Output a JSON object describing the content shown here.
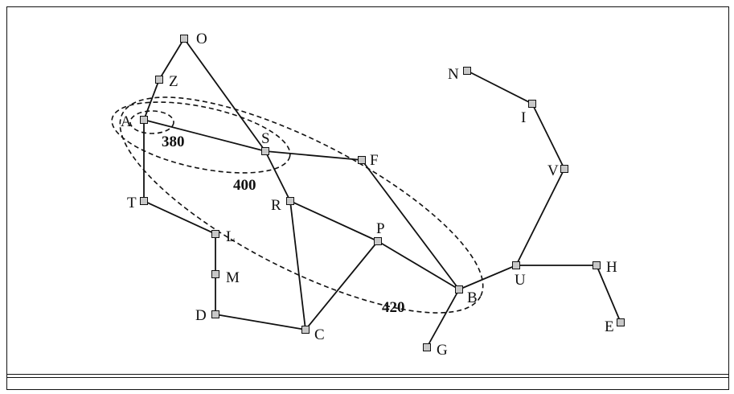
{
  "diagram": {
    "nodes": [
      {
        "id": "O",
        "label": "O"
      },
      {
        "id": "Z",
        "label": "Z"
      },
      {
        "id": "A",
        "label": "A"
      },
      {
        "id": "S",
        "label": "S"
      },
      {
        "id": "F",
        "label": "F"
      },
      {
        "id": "T",
        "label": "T"
      },
      {
        "id": "R",
        "label": "R"
      },
      {
        "id": "L",
        "label": "L"
      },
      {
        "id": "P",
        "label": "P"
      },
      {
        "id": "M",
        "label": "M"
      },
      {
        "id": "D",
        "label": "D"
      },
      {
        "id": "C",
        "label": "C"
      },
      {
        "id": "B",
        "label": "B"
      },
      {
        "id": "G",
        "label": "G"
      },
      {
        "id": "U",
        "label": "U"
      },
      {
        "id": "H",
        "label": "H"
      },
      {
        "id": "E",
        "label": "E"
      },
      {
        "id": "V",
        "label": "V"
      },
      {
        "id": "I",
        "label": "I"
      },
      {
        "id": "N",
        "label": "N"
      }
    ],
    "edges": [
      [
        "O",
        "Z"
      ],
      [
        "Z",
        "A"
      ],
      [
        "O",
        "S"
      ],
      [
        "A",
        "S"
      ],
      [
        "A",
        "T"
      ],
      [
        "S",
        "F"
      ],
      [
        "S",
        "R"
      ],
      [
        "T",
        "L"
      ],
      [
        "L",
        "M"
      ],
      [
        "M",
        "D"
      ],
      [
        "D",
        "C"
      ],
      [
        "R",
        "C"
      ],
      [
        "R",
        "P"
      ],
      [
        "P",
        "C"
      ],
      [
        "P",
        "B"
      ],
      [
        "F",
        "B"
      ],
      [
        "B",
        "G"
      ],
      [
        "B",
        "U"
      ],
      [
        "U",
        "H"
      ],
      [
        "H",
        "E"
      ],
      [
        "U",
        "V"
      ],
      [
        "V",
        "I"
      ],
      [
        "I",
        "N"
      ]
    ],
    "contours": [
      {
        "id": "c380",
        "label": "380"
      },
      {
        "id": "c400",
        "label": "400"
      },
      {
        "id": "c420",
        "label": "420"
      }
    ],
    "colors": {
      "node_fill": "#c8c8c8",
      "stroke": "#111111"
    }
  }
}
